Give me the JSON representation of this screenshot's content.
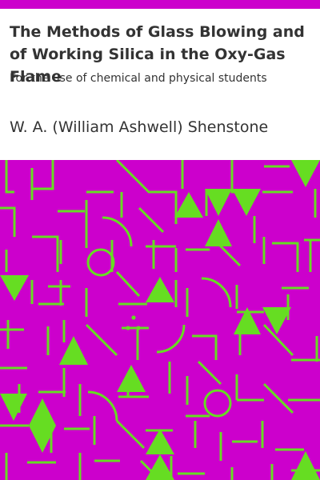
{
  "book": {
    "title": "The Methods of Glass Blowing and of Working Silica in the Oxy-Gas Flame",
    "subtitle": "For the use of chemical and physical students",
    "author": "W. A. (William Ashwell) Shenstone"
  },
  "colors": {
    "background": "#ffffff",
    "accent": "#cc00cc",
    "pattern": "#66dd22",
    "text": "#333333"
  }
}
